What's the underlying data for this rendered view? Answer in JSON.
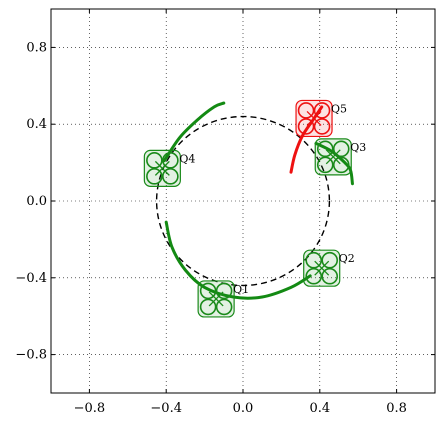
{
  "chart_data": {
    "type": "scatter",
    "title": "",
    "xlabel": "",
    "ylabel": "",
    "xlim": [
      -1.0,
      1.0
    ],
    "ylim": [
      -1.0,
      1.0
    ],
    "grid": true,
    "x_ticks": [
      -0.8,
      -0.4,
      0.0,
      0.4,
      0.8
    ],
    "x_tick_labels": [
      "−0.8",
      "−0.4",
      "0.0",
      "0.4",
      "0.8"
    ],
    "y_ticks": [
      0.8,
      0.4,
      0.0,
      -0.4,
      -0.8
    ],
    "y_tick_labels": [
      "0.8",
      "0.4",
      "0.0",
      "−0.4",
      "−0.8"
    ],
    "formation_circle": {
      "center": [
        0.0,
        0.0
      ],
      "r_x": 0.45,
      "r_y": 0.44,
      "style": "dashed",
      "color": "#000000"
    },
    "quadrotors": [
      {
        "label": "Q1",
        "x": -0.14,
        "y": -0.51,
        "color": "#1a8a1a"
      },
      {
        "label": "Q2",
        "x": 0.41,
        "y": -0.35,
        "color": "#1a8a1a"
      },
      {
        "label": "Q3",
        "x": 0.47,
        "y": 0.23,
        "color": "#1a8a1a"
      },
      {
        "label": "Q4",
        "x": -0.42,
        "y": 0.17,
        "color": "#1a8a1a"
      },
      {
        "label": "Q5",
        "x": 0.37,
        "y": 0.43,
        "color": "#ee1111"
      }
    ],
    "trajectories": [
      {
        "color": "#138a13",
        "points": [
          [
            -0.41,
            0.21
          ],
          [
            -0.33,
            0.33
          ],
          [
            -0.24,
            0.42
          ],
          [
            -0.15,
            0.49
          ],
          [
            -0.1,
            0.51
          ]
        ]
      },
      {
        "color": "#138a13",
        "points": [
          [
            -0.4,
            -0.11
          ],
          [
            -0.37,
            -0.24
          ],
          [
            -0.3,
            -0.36
          ],
          [
            -0.2,
            -0.45
          ],
          [
            -0.05,
            -0.5
          ],
          [
            0.1,
            -0.5
          ],
          [
            0.25,
            -0.45
          ],
          [
            0.35,
            -0.39
          ]
        ]
      },
      {
        "color": "#138a13",
        "points": [
          [
            0.38,
            0.3
          ],
          [
            0.46,
            0.26
          ],
          [
            0.53,
            0.2
          ],
          [
            0.56,
            0.16
          ],
          [
            0.57,
            0.09
          ]
        ]
      },
      {
        "color": "#ee1111",
        "points": [
          [
            0.25,
            0.15
          ],
          [
            0.27,
            0.24
          ],
          [
            0.31,
            0.34
          ],
          [
            0.37,
            0.43
          ],
          [
            0.41,
            0.49
          ]
        ]
      }
    ]
  }
}
